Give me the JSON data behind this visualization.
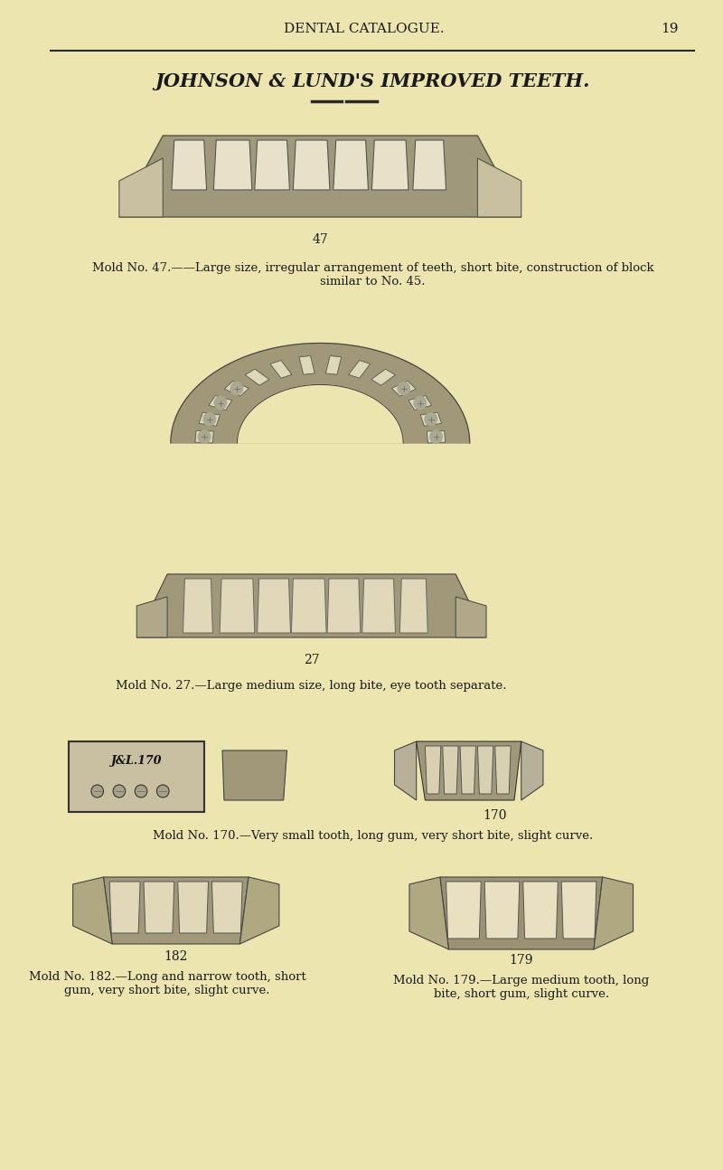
{
  "background_color": "#EDE5B0",
  "page_width": 8.0,
  "page_height": 12.94,
  "dpi": 100,
  "header_text": "DENTAL CATALOGUE.",
  "page_number": "19",
  "title_text": "JOHNSON & LUND'S IMPROVED TEETH.",
  "mold47_label": "47",
  "mold47_caption": "Mold No. 47.——Large size, irregular arrangement of teeth, short bite, construction of block\nsimilar to No. 45.",
  "mold27_label": "27",
  "mold27_caption": "Mold No. 27.—Large medium size, long bite, eye tooth separate.",
  "mold170_label": "170",
  "mold170_caption": "Mold No. 170.—Very small tooth, long gum, very short bite, slight curve.",
  "mold182_label": "182",
  "mold182_caption": "Mold No. 182.—Long and narrow tooth, short\ngum, very short bite, slight curve.",
  "mold179_label": "179",
  "mold179_caption": "Mold No. 179.—Large medium tooth, long\nbite, short gum, slight curve.",
  "text_color": "#1a1a1a",
  "line_color": "#2a2a2a",
  "illustration_color": "#888870"
}
